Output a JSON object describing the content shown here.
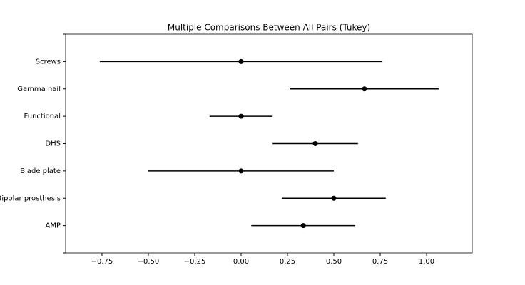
{
  "chart_data": {
    "type": "errorbar",
    "title": "Multiple Comparisons Between All Pairs (Tukey)",
    "categories": [
      "Screws",
      "Gamma nail",
      "Functional",
      "DHS",
      "Blade plate",
      "Bipolar prosthesis",
      "AMP"
    ],
    "values": [
      0,
      0.665,
      0,
      0.4,
      0,
      0.5,
      0.335
    ],
    "errors": [
      0.762,
      0.4,
      0.17,
      0.23,
      0.5,
      0.28,
      0.28
    ],
    "color": "#000000",
    "xlim": [
      -0.946,
      1.246
    ],
    "xticks": [
      {
        "value": -0.75,
        "label": "−0.75"
      },
      {
        "value": -0.5,
        "label": "−0.50"
      },
      {
        "value": -0.25,
        "label": "−0.25"
      },
      {
        "value": 0,
        "label": "0.00"
      },
      0.25,
      {
        "value": 0.5,
        "label": "0.50"
      },
      0.75,
      {
        "value": 1,
        "label": "1.00"
      }
    ]
  }
}
